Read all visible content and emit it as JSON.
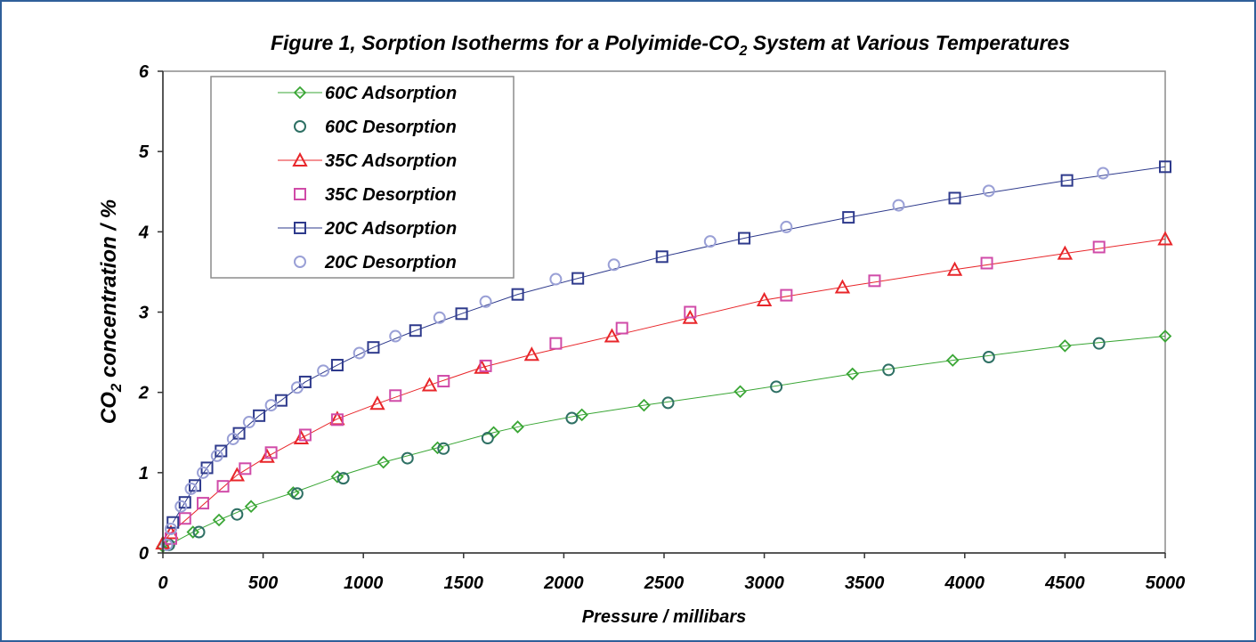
{
  "chart_data": {
    "type": "scatter",
    "title": "Figure 1, Sorption Isotherms for a Polyimide-CO",
    "title_sub": "2",
    "title_rest": " System at Various Temperatures",
    "xlabel": "Pressure / millibars",
    "ylabel_main": "CO",
    "ylabel_sub": "2",
    "ylabel_rest": " concentration / %",
    "xlim": [
      0,
      5000
    ],
    "ylim": [
      0,
      6
    ],
    "x_ticks": [
      "0",
      "500",
      "1000",
      "1500",
      "2000",
      "2500",
      "3000",
      "3500",
      "4000",
      "4500",
      "5000"
    ],
    "y_ticks": [
      "0",
      "1",
      "2",
      "3",
      "4",
      "5",
      "6"
    ],
    "grid": false,
    "legend_position": "top-left",
    "series": [
      {
        "name": "60C Adsorption",
        "marker": "diamond",
        "color": "#3aa635",
        "line": true,
        "x": [
          0,
          30,
          150,
          280,
          440,
          650,
          870,
          1100,
          1370,
          1650,
          1770,
          2090,
          2400,
          2880,
          3440,
          3940,
          4500,
          5000
        ],
        "y": [
          0.08,
          0.1,
          0.26,
          0.41,
          0.58,
          0.75,
          0.95,
          1.13,
          1.31,
          1.5,
          1.57,
          1.72,
          1.84,
          2.01,
          2.23,
          2.4,
          2.58,
          2.7
        ]
      },
      {
        "name": "60C Desorption",
        "marker": "circle",
        "color": "#2e7064",
        "line": false,
        "x": [
          30,
          180,
          370,
          670,
          900,
          1220,
          1400,
          1620,
          2040,
          2520,
          3060,
          3620,
          4120,
          4670
        ],
        "y": [
          0.1,
          0.26,
          0.48,
          0.74,
          0.93,
          1.18,
          1.3,
          1.43,
          1.68,
          1.87,
          2.07,
          2.28,
          2.44,
          2.61
        ]
      },
      {
        "name": "35C Adsorption",
        "marker": "triangle",
        "color": "#e8262a",
        "line": true,
        "x": [
          0,
          40,
          370,
          520,
          690,
          870,
          1070,
          1330,
          1590,
          1840,
          2240,
          2630,
          3000,
          3390,
          3950,
          4500,
          5000
        ],
        "y": [
          0.12,
          0.25,
          0.97,
          1.2,
          1.43,
          1.67,
          1.86,
          2.09,
          2.31,
          2.47,
          2.7,
          2.93,
          3.15,
          3.31,
          3.53,
          3.73,
          3.91
        ]
      },
      {
        "name": "35C Desorption",
        "marker": "square",
        "color": "#d04ba8",
        "line": false,
        "x": [
          40,
          110,
          200,
          300,
          410,
          540,
          710,
          870,
          1160,
          1400,
          1610,
          1960,
          2290,
          2630,
          3110,
          3550,
          4110,
          4670
        ],
        "y": [
          0.18,
          0.43,
          0.62,
          0.83,
          1.05,
          1.25,
          1.47,
          1.66,
          1.96,
          2.14,
          2.33,
          2.61,
          2.8,
          3.0,
          3.21,
          3.39,
          3.61,
          3.81
        ]
      },
      {
        "name": "20C Adsorption",
        "marker": "square",
        "color": "#2e3a8c",
        "line": true,
        "x": [
          50,
          110,
          160,
          220,
          290,
          380,
          480,
          590,
          710,
          870,
          1050,
          1260,
          1490,
          1770,
          2070,
          2490,
          2900,
          3420,
          3950,
          4510,
          5000
        ],
        "y": [
          0.38,
          0.63,
          0.84,
          1.06,
          1.27,
          1.49,
          1.71,
          1.9,
          2.13,
          2.34,
          2.56,
          2.77,
          2.98,
          3.22,
          3.42,
          3.69,
          3.92,
          4.18,
          4.42,
          4.64,
          4.81
        ]
      },
      {
        "name": "20C Desorption",
        "marker": "circle",
        "color": "#9aa0d6",
        "line": false,
        "x": [
          20,
          40,
          90,
          140,
          200,
          270,
          350,
          430,
          540,
          670,
          800,
          980,
          1160,
          1380,
          1610,
          1960,
          2250,
          2730,
          3110,
          3670,
          4120,
          4690
        ],
        "y": [
          0.1,
          0.3,
          0.58,
          0.8,
          1.0,
          1.21,
          1.42,
          1.63,
          1.84,
          2.06,
          2.27,
          2.49,
          2.7,
          2.93,
          3.13,
          3.41,
          3.59,
          3.88,
          4.06,
          4.33,
          4.51,
          4.73
        ]
      }
    ]
  }
}
